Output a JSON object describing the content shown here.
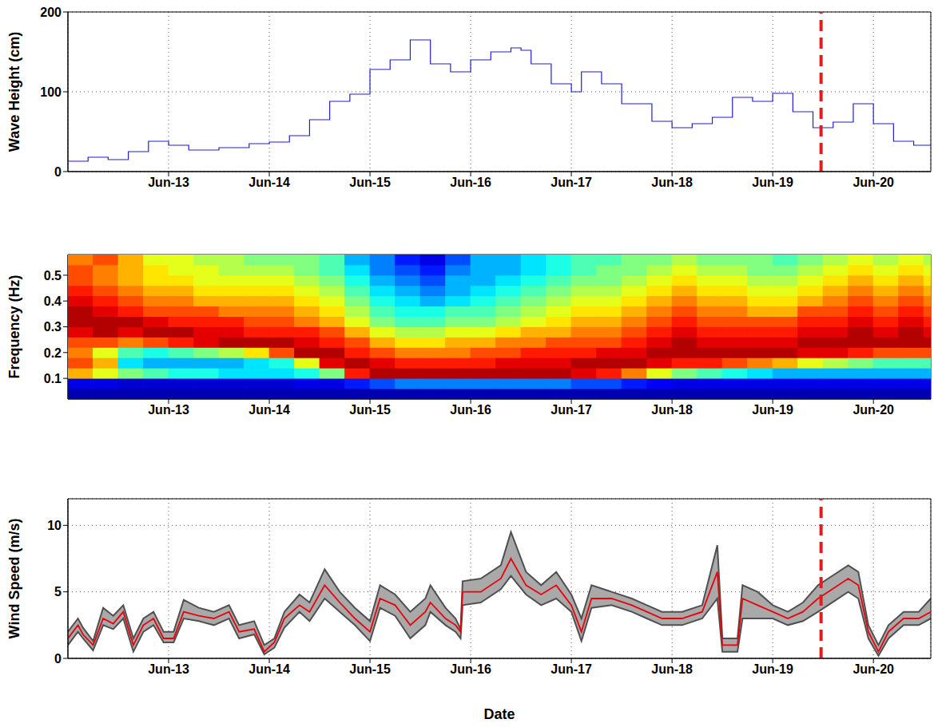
{
  "chart_data": [
    {
      "type": "line",
      "y_label": "Wave Height (cm)",
      "grid": true,
      "xlim": [
        12,
        20.57
      ],
      "xticks": [
        {
          "value": 13,
          "label": "Jun-13"
        },
        {
          "value": 14,
          "label": "Jun-14"
        },
        {
          "value": 15,
          "label": "Jun-15"
        },
        {
          "value": 16,
          "label": "Jun-16"
        },
        {
          "value": 17,
          "label": "Jun-17"
        },
        {
          "value": 18,
          "label": "Jun-18"
        },
        {
          "value": 19,
          "label": "Jun-19"
        },
        {
          "value": 20,
          "label": "Jun-20"
        }
      ],
      "ylim": [
        0,
        200
      ],
      "yticks": [
        0,
        100,
        200
      ],
      "x": [
        12.0,
        12.2,
        12.4,
        12.6,
        12.8,
        13.0,
        13.2,
        13.5,
        13.8,
        14.0,
        14.2,
        14.4,
        14.6,
        14.8,
        15.0,
        15.2,
        15.4,
        15.6,
        15.8,
        16.0,
        16.2,
        16.4,
        16.5,
        16.6,
        16.8,
        17.0,
        17.1,
        17.3,
        17.5,
        17.8,
        18.0,
        18.2,
        18.4,
        18.6,
        18.8,
        19.0,
        19.2,
        19.4,
        19.6,
        19.8,
        20.0,
        20.2,
        20.4,
        20.57
      ],
      "series": [
        {
          "type": "line",
          "line_style": "step",
          "color": "#2020d0",
          "values": [
            13,
            18,
            15,
            25,
            38,
            33,
            27,
            30,
            35,
            37,
            45,
            65,
            88,
            97,
            128,
            140,
            165,
            135,
            125,
            140,
            150,
            155,
            152,
            135,
            110,
            100,
            125,
            110,
            85,
            63,
            55,
            60,
            68,
            93,
            88,
            98,
            75,
            55,
            62,
            85,
            60,
            38,
            33,
            32
          ]
        }
      ],
      "reference_line": {
        "x": 19.48,
        "color": "#e41a1c",
        "line_style": "dashed"
      }
    },
    {
      "type": "heatmap",
      "y_label": "Frequency (Hz)",
      "grid": false,
      "xlim": [
        12,
        20.57
      ],
      "xticks": [
        {
          "value": 13,
          "label": "Jun-13"
        },
        {
          "value": 14,
          "label": "Jun-14"
        },
        {
          "value": 15,
          "label": "Jun-15"
        },
        {
          "value": 16,
          "label": "Jun-16"
        },
        {
          "value": 17,
          "label": "Jun-17"
        },
        {
          "value": 18,
          "label": "Jun-18"
        },
        {
          "value": 19,
          "label": "Jun-19"
        },
        {
          "value": 20,
          "label": "Jun-20"
        }
      ],
      "ylim": [
        0.02,
        0.58
      ],
      "yticks": [
        0.1,
        0.2,
        0.3,
        0.4,
        0.5
      ],
      "clim": [
        0,
        1
      ],
      "time_bins": [
        12,
        12.25,
        12.5,
        12.75,
        13,
        13.25,
        13.5,
        13.75,
        14,
        14.25,
        14.5,
        14.75,
        15,
        15.25,
        15.5,
        15.75,
        16,
        16.25,
        16.5,
        16.75,
        17,
        17.25,
        17.5,
        17.75,
        18,
        18.25,
        18.5,
        18.75,
        19,
        19.25,
        19.5,
        19.75,
        20,
        20.25,
        20.5,
        20.57
      ],
      "frequency_bins": [
        0.02,
        0.06,
        0.1,
        0.14,
        0.18,
        0.22,
        0.26,
        0.3,
        0.34,
        0.38,
        0.42,
        0.46,
        0.5,
        0.54,
        0.58
      ],
      "cells": [
        [
          0.05,
          0.1,
          0.7,
          0.8,
          0.75,
          0.8,
          0.9,
          0.95,
          0.95,
          0.9,
          0.85,
          0.8,
          0.8,
          0.75
        ],
        [
          0.05,
          0.1,
          0.6,
          0.7,
          0.6,
          0.8,
          0.95,
          0.95,
          0.9,
          0.85,
          0.8,
          0.75,
          0.75,
          0.8
        ],
        [
          0.05,
          0.08,
          0.5,
          0.35,
          0.45,
          0.75,
          0.9,
          0.95,
          0.85,
          0.8,
          0.75,
          0.7,
          0.7,
          0.7
        ],
        [
          0.05,
          0.08,
          0.45,
          0.3,
          0.4,
          0.8,
          0.95,
          0.9,
          0.8,
          0.75,
          0.7,
          0.65,
          0.65,
          0.6
        ],
        [
          0.05,
          0.08,
          0.4,
          0.3,
          0.45,
          0.85,
          0.95,
          0.85,
          0.8,
          0.75,
          0.7,
          0.65,
          0.6,
          0.6
        ],
        [
          0.05,
          0.08,
          0.4,
          0.3,
          0.5,
          0.9,
          0.9,
          0.85,
          0.8,
          0.7,
          0.65,
          0.6,
          0.6,
          0.55
        ],
        [
          0.05,
          0.08,
          0.35,
          0.3,
          0.55,
          0.95,
          0.9,
          0.85,
          0.75,
          0.7,
          0.65,
          0.6,
          0.55,
          0.55
        ],
        [
          0.05,
          0.08,
          0.35,
          0.35,
          0.65,
          0.95,
          0.85,
          0.8,
          0.75,
          0.7,
          0.65,
          0.6,
          0.55,
          0.5
        ],
        [
          0.05,
          0.08,
          0.35,
          0.4,
          0.8,
          0.95,
          0.85,
          0.8,
          0.75,
          0.7,
          0.65,
          0.6,
          0.55,
          0.5
        ],
        [
          0.05,
          0.1,
          0.4,
          0.6,
          0.95,
          0.9,
          0.85,
          0.75,
          0.7,
          0.65,
          0.6,
          0.55,
          0.5,
          0.5
        ],
        [
          0.05,
          0.1,
          0.5,
          0.9,
          0.95,
          0.85,
          0.8,
          0.7,
          0.65,
          0.6,
          0.55,
          0.5,
          0.45,
          0.45
        ],
        [
          0.05,
          0.15,
          0.85,
          0.95,
          0.85,
          0.8,
          0.7,
          0.6,
          0.55,
          0.5,
          0.45,
          0.4,
          0.35,
          0.3
        ],
        [
          0.05,
          0.2,
          0.95,
          0.9,
          0.8,
          0.7,
          0.6,
          0.5,
          0.45,
          0.4,
          0.35,
          0.3,
          0.25,
          0.25
        ],
        [
          0.05,
          0.25,
          0.95,
          0.85,
          0.75,
          0.65,
          0.55,
          0.45,
          0.4,
          0.35,
          0.3,
          0.25,
          0.2,
          0.15
        ],
        [
          0.05,
          0.25,
          0.95,
          0.85,
          0.75,
          0.65,
          0.55,
          0.45,
          0.4,
          0.3,
          0.25,
          0.2,
          0.15,
          0.1
        ],
        [
          0.05,
          0.25,
          0.95,
          0.85,
          0.75,
          0.7,
          0.6,
          0.5,
          0.45,
          0.35,
          0.3,
          0.3,
          0.25,
          0.2
        ],
        [
          0.05,
          0.25,
          0.95,
          0.85,
          0.8,
          0.7,
          0.6,
          0.5,
          0.45,
          0.4,
          0.35,
          0.3,
          0.3,
          0.3
        ],
        [
          0.05,
          0.25,
          0.95,
          0.9,
          0.8,
          0.75,
          0.65,
          0.55,
          0.5,
          0.45,
          0.4,
          0.35,
          0.3,
          0.3
        ],
        [
          0.05,
          0.25,
          0.95,
          0.9,
          0.85,
          0.75,
          0.7,
          0.6,
          0.55,
          0.5,
          0.45,
          0.4,
          0.35,
          0.35
        ],
        [
          0.05,
          0.25,
          0.95,
          0.9,
          0.85,
          0.8,
          0.7,
          0.65,
          0.6,
          0.55,
          0.5,
          0.45,
          0.4,
          0.4
        ],
        [
          0.05,
          0.2,
          0.9,
          0.95,
          0.85,
          0.8,
          0.75,
          0.7,
          0.65,
          0.6,
          0.55,
          0.5,
          0.45,
          0.45
        ],
        [
          0.05,
          0.2,
          0.85,
          0.95,
          0.9,
          0.8,
          0.75,
          0.7,
          0.65,
          0.6,
          0.55,
          0.5,
          0.5,
          0.45
        ],
        [
          0.05,
          0.15,
          0.75,
          0.95,
          0.9,
          0.85,
          0.8,
          0.75,
          0.7,
          0.65,
          0.6,
          0.55,
          0.5,
          0.5
        ],
        [
          0.05,
          0.12,
          0.6,
          0.9,
          0.95,
          0.9,
          0.85,
          0.8,
          0.75,
          0.7,
          0.65,
          0.6,
          0.55,
          0.5
        ],
        [
          0.05,
          0.1,
          0.5,
          0.85,
          0.95,
          0.95,
          0.9,
          0.85,
          0.8,
          0.75,
          0.7,
          0.65,
          0.6,
          0.55
        ],
        [
          0.05,
          0.1,
          0.45,
          0.85,
          0.95,
          0.9,
          0.85,
          0.8,
          0.75,
          0.7,
          0.65,
          0.6,
          0.55,
          0.5
        ],
        [
          0.05,
          0.1,
          0.4,
          0.8,
          0.95,
          0.9,
          0.85,
          0.8,
          0.75,
          0.7,
          0.65,
          0.6,
          0.55,
          0.5
        ],
        [
          0.05,
          0.1,
          0.35,
          0.75,
          0.95,
          0.9,
          0.85,
          0.8,
          0.7,
          0.65,
          0.6,
          0.55,
          0.5,
          0.5
        ],
        [
          0.05,
          0.1,
          0.3,
          0.7,
          0.95,
          0.9,
          0.85,
          0.8,
          0.7,
          0.65,
          0.6,
          0.55,
          0.5,
          0.45
        ],
        [
          0.05,
          0.1,
          0.3,
          0.6,
          0.9,
          0.95,
          0.9,
          0.85,
          0.8,
          0.7,
          0.65,
          0.6,
          0.55,
          0.5
        ],
        [
          0.05,
          0.1,
          0.3,
          0.55,
          0.9,
          0.95,
          0.9,
          0.85,
          0.8,
          0.75,
          0.7,
          0.65,
          0.6,
          0.55
        ],
        [
          0.05,
          0.1,
          0.3,
          0.5,
          0.85,
          0.95,
          0.95,
          0.9,
          0.85,
          0.8,
          0.75,
          0.7,
          0.65,
          0.6
        ],
        [
          0.05,
          0.1,
          0.3,
          0.45,
          0.8,
          0.95,
          0.9,
          0.85,
          0.8,
          0.75,
          0.7,
          0.65,
          0.6,
          0.55
        ],
        [
          0.05,
          0.1,
          0.3,
          0.45,
          0.8,
          0.95,
          0.95,
          0.9,
          0.85,
          0.8,
          0.75,
          0.7,
          0.65,
          0.6
        ],
        [
          0.05,
          0.1,
          0.3,
          0.45,
          0.8,
          0.95,
          0.9,
          0.85,
          0.8,
          0.75,
          0.7,
          0.65,
          0.6,
          0.55
        ]
      ],
      "reference_line": {
        "x": 19.48,
        "color": "#e41a1c",
        "line_style": "dashed"
      }
    },
    {
      "type": "line",
      "y_label": "Wind Speed (m/s)",
      "x_label": "Date",
      "grid": true,
      "xlim": [
        12,
        20.57
      ],
      "xticks": [
        {
          "value": 13,
          "label": "Jun-13"
        },
        {
          "value": 14,
          "label": "Jun-14"
        },
        {
          "value": 15,
          "label": "Jun-15"
        },
        {
          "value": 16,
          "label": "Jun-16"
        },
        {
          "value": 17,
          "label": "Jun-17"
        },
        {
          "value": 18,
          "label": "Jun-18"
        },
        {
          "value": 19,
          "label": "Jun-19"
        },
        {
          "value": 20,
          "label": "Jun-20"
        }
      ],
      "ylim": [
        0,
        12
      ],
      "yticks": [
        0,
        5,
        10
      ],
      "x": [
        12.0,
        12.1,
        12.15,
        12.25,
        12.35,
        12.45,
        12.55,
        12.65,
        12.75,
        12.85,
        12.95,
        13.05,
        13.15,
        13.3,
        13.45,
        13.6,
        13.7,
        13.85,
        13.95,
        14.05,
        14.15,
        14.3,
        14.4,
        14.55,
        14.7,
        14.85,
        15.0,
        15.1,
        15.25,
        15.4,
        15.55,
        15.6,
        15.75,
        15.85,
        15.9,
        15.92,
        16.1,
        16.3,
        16.4,
        16.55,
        16.7,
        16.85,
        17.0,
        17.1,
        17.2,
        17.4,
        17.6,
        17.75,
        17.9,
        18.1,
        18.3,
        18.45,
        18.5,
        18.65,
        18.7,
        18.85,
        19.0,
        19.15,
        19.3,
        19.45,
        19.55,
        19.75,
        19.85,
        19.95,
        20.05,
        20.15,
        20.3,
        20.45,
        20.57
      ],
      "series": [
        {
          "type": "area_range",
          "color": "#a9a9a9",
          "lower": [
            1.0,
            2.0,
            1.5,
            0.6,
            2.5,
            2.2,
            3.0,
            0.5,
            2.0,
            2.5,
            1.2,
            1.2,
            3.0,
            2.8,
            2.5,
            3.0,
            1.5,
            1.8,
            0.3,
            0.8,
            2.3,
            3.5,
            2.8,
            4.5,
            3.5,
            2.5,
            1.3,
            3.8,
            3.2,
            1.5,
            2.5,
            3.5,
            2.5,
            2.0,
            1.5,
            4.0,
            4.2,
            5.2,
            6.2,
            4.8,
            4.0,
            4.5,
            3.5,
            1.3,
            3.8,
            4.0,
            3.5,
            3.0,
            2.5,
            2.5,
            3.0,
            4.5,
            0.5,
            0.5,
            3.0,
            3.0,
            3.0,
            2.5,
            2.8,
            3.5,
            4.0,
            5.0,
            4.5,
            1.5,
            0.2,
            1.5,
            2.5,
            2.5,
            3.0
          ],
          "upper": [
            2.0,
            3.0,
            2.3,
            1.3,
            3.8,
            3.2,
            4.0,
            1.5,
            3.0,
            3.5,
            2.0,
            2.0,
            4.4,
            3.8,
            3.5,
            4.0,
            2.5,
            2.8,
            1.0,
            1.5,
            3.5,
            4.8,
            4.2,
            6.7,
            5.0,
            3.8,
            2.8,
            5.5,
            4.8,
            3.5,
            4.5,
            5.5,
            3.8,
            3.0,
            2.2,
            5.8,
            6.0,
            7.0,
            9.5,
            6.5,
            5.5,
            6.5,
            4.8,
            3.0,
            5.5,
            5.0,
            4.5,
            4.0,
            3.5,
            3.5,
            4.0,
            8.5,
            1.5,
            1.5,
            5.5,
            5.0,
            4.0,
            3.5,
            4.2,
            5.5,
            6.0,
            7.0,
            6.5,
            2.5,
            1.0,
            2.5,
            3.5,
            3.5,
            4.5
          ]
        },
        {
          "type": "line",
          "color": "#e8000b",
          "values": [
            1.5,
            2.5,
            1.8,
            1.0,
            3.0,
            2.6,
            3.5,
            1.0,
            2.5,
            3.0,
            1.5,
            1.5,
            3.5,
            3.2,
            3.0,
            3.5,
            2.0,
            2.2,
            0.5,
            1.2,
            3.0,
            4.0,
            3.5,
            5.5,
            4.2,
            3.0,
            2.0,
            4.5,
            4.0,
            2.5,
            3.5,
            4.2,
            3.0,
            2.5,
            2.0,
            5.0,
            5.0,
            6.0,
            7.5,
            5.5,
            4.8,
            5.5,
            4.0,
            2.0,
            4.5,
            4.5,
            4.0,
            3.5,
            3.0,
            3.0,
            3.5,
            6.5,
            1.0,
            1.0,
            4.5,
            4.0,
            3.5,
            3.0,
            3.5,
            4.5,
            5.0,
            6.0,
            5.5,
            2.0,
            0.5,
            2.0,
            3.0,
            3.0,
            3.5
          ]
        }
      ],
      "reference_line": {
        "x": 19.48,
        "color": "#e41a1c",
        "line_style": "dashed"
      }
    }
  ]
}
